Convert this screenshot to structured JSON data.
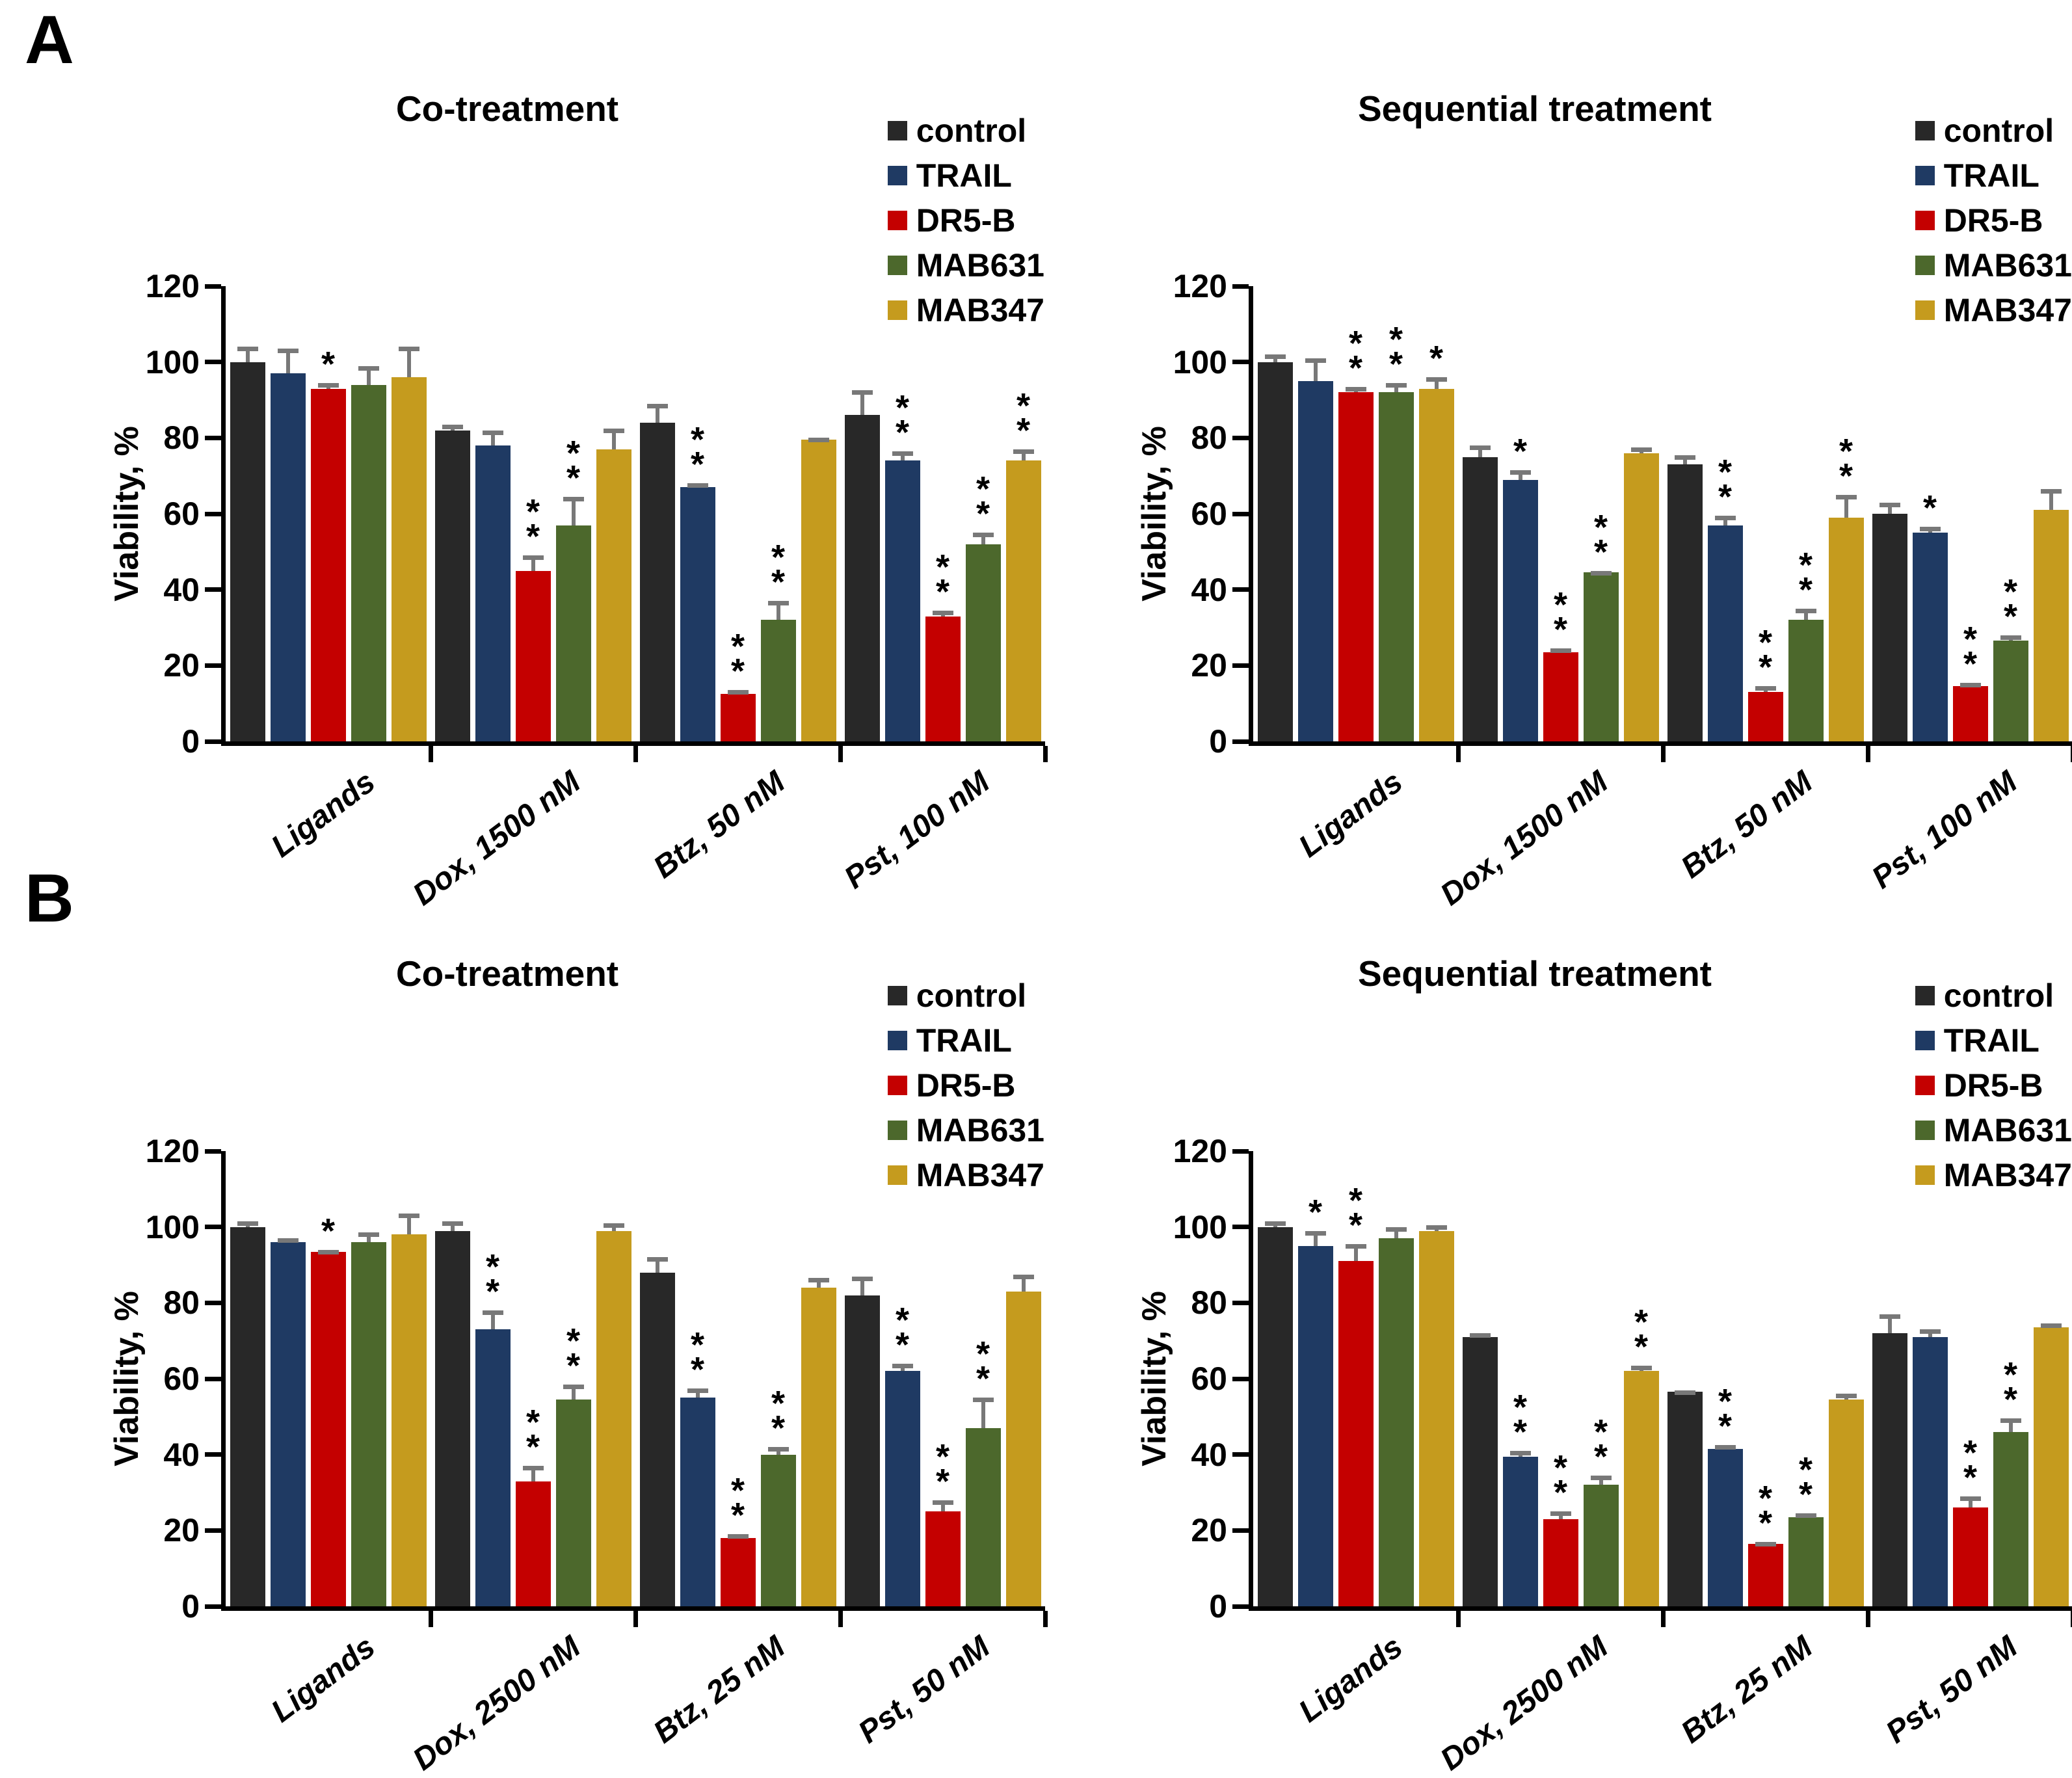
{
  "page": {
    "panel_a_label": "A",
    "panel_b_label": "B"
  },
  "legend": {
    "entries": [
      {
        "label": "control",
        "color": "#282828"
      },
      {
        "label": "TRAIL",
        "color": "#1F3A63"
      },
      {
        "label": "DR5-B",
        "color": "#C40000"
      },
      {
        "label": "MAB631",
        "color": "#4C682C"
      },
      {
        "label": "MAB347",
        "color": "#C59B1E"
      }
    ],
    "position": "top-right"
  },
  "style": {
    "error_bar_color": "#787878",
    "axis_color": "#000000",
    "background": "#ffffff"
  },
  "chart_data": [
    {
      "id": "a_co",
      "panel": "A",
      "type": "bar",
      "title": "Co-treatment",
      "ylabel": "Viability, %",
      "ylim": [
        0,
        120
      ],
      "yticks": [
        0,
        20,
        40,
        60,
        80,
        100,
        120
      ],
      "grid": false,
      "categories": [
        "Ligands",
        "Dox, 1500 nM",
        "Btz, 50 nM",
        "Pst, 100 nM"
      ],
      "series": [
        {
          "name": "control",
          "values": [
            100,
            82,
            84,
            86
          ],
          "errors": [
            4,
            1.5,
            5,
            6.5
          ],
          "sig": [
            "",
            "",
            "",
            ""
          ]
        },
        {
          "name": "TRAIL",
          "values": [
            97,
            78,
            67,
            74
          ],
          "errors": [
            6.5,
            4,
            1,
            2.5
          ],
          "sig": [
            "",
            "",
            "**",
            "**"
          ]
        },
        {
          "name": "DR5-B",
          "values": [
            93,
            45,
            12.5,
            33
          ],
          "errors": [
            1.5,
            4,
            1,
            1.5
          ],
          "sig": [
            "*",
            "**",
            "**",
            "**"
          ]
        },
        {
          "name": "MAB631",
          "values": [
            94,
            57,
            32,
            52
          ],
          "errors": [
            5,
            7.5,
            5,
            3
          ],
          "sig": [
            "",
            "**",
            "**",
            "**"
          ]
        },
        {
          "name": "MAB347",
          "values": [
            96,
            77,
            79.5,
            74
          ],
          "errors": [
            8,
            5.5,
            0.5,
            3
          ],
          "sig": [
            "",
            "",
            "",
            "**"
          ]
        }
      ]
    },
    {
      "id": "a_seq",
      "panel": "A",
      "type": "bar",
      "title": "Sequential treatment",
      "ylabel": "Viability, %",
      "ylim": [
        0,
        120
      ],
      "yticks": [
        0,
        20,
        40,
        60,
        80,
        100,
        120
      ],
      "grid": false,
      "categories": [
        "Ligands",
        "Dox, 1500 nM",
        "Btz, 50 nM",
        "Pst, 100 nM"
      ],
      "series": [
        {
          "name": "control",
          "values": [
            100,
            75,
            73,
            60
          ],
          "errors": [
            2,
            3,
            2.5,
            3
          ],
          "sig": [
            "",
            "",
            "",
            ""
          ]
        },
        {
          "name": "TRAIL",
          "values": [
            95,
            69,
            57,
            55
          ],
          "errors": [
            6,
            2.5,
            2.5,
            1.5
          ],
          "sig": [
            "",
            "*",
            "**",
            "*"
          ]
        },
        {
          "name": "DR5-B",
          "values": [
            92,
            23.5,
            13,
            14.5
          ],
          "errors": [
            1.5,
            1,
            1.5,
            1
          ],
          "sig": [
            "**",
            "**",
            "**",
            "**"
          ]
        },
        {
          "name": "MAB631",
          "values": [
            92,
            44.5,
            32,
            26.5
          ],
          "errors": [
            2.5,
            0.5,
            3,
            1.5
          ],
          "sig": [
            "**",
            "**",
            "**",
            "**"
          ]
        },
        {
          "name": "MAB347",
          "values": [
            93,
            76,
            59,
            61
          ],
          "errors": [
            3,
            1.5,
            6,
            5.5
          ],
          "sig": [
            "*",
            "",
            "**",
            ""
          ]
        }
      ]
    },
    {
      "id": "b_co",
      "panel": "B",
      "type": "bar",
      "title": "Co-treatment",
      "ylabel": "Viability, %",
      "ylim": [
        0,
        120
      ],
      "yticks": [
        0,
        20,
        40,
        60,
        80,
        100,
        120
      ],
      "grid": false,
      "categories": [
        "Ligands",
        "Dox, 2500 nM",
        "Btz, 25 nM",
        "Pst, 50 nM"
      ],
      "series": [
        {
          "name": "control",
          "values": [
            100,
            99,
            88,
            82
          ],
          "errors": [
            1.5,
            2.5,
            4,
            5
          ],
          "sig": [
            "",
            "",
            "",
            ""
          ]
        },
        {
          "name": "TRAIL",
          "values": [
            96,
            73,
            55,
            62
          ],
          "errors": [
            1,
            5,
            2.5,
            2
          ],
          "sig": [
            "",
            "**",
            "**",
            "**"
          ]
        },
        {
          "name": "DR5-B",
          "values": [
            93.5,
            33,
            18,
            25
          ],
          "errors": [
            0.5,
            4,
            1,
            3
          ],
          "sig": [
            "*",
            "**",
            "**",
            "**"
          ]
        },
        {
          "name": "MAB631",
          "values": [
            96,
            54.5,
            40,
            47
          ],
          "errors": [
            2.5,
            4,
            2,
            8
          ],
          "sig": [
            "",
            "**",
            "**",
            "**"
          ]
        },
        {
          "name": "MAB347",
          "values": [
            98,
            99,
            84,
            83
          ],
          "errors": [
            5.5,
            2,
            2.5,
            4.5
          ],
          "sig": [
            "",
            "",
            "",
            ""
          ]
        }
      ]
    },
    {
      "id": "b_seq",
      "panel": "B",
      "type": "bar",
      "title": "Sequential treatment",
      "ylabel": "Viability, %",
      "ylim": [
        0,
        120
      ],
      "yticks": [
        0,
        20,
        40,
        60,
        80,
        100,
        120
      ],
      "grid": false,
      "categories": [
        "Ligands",
        "Dox, 2500 nM",
        "Btz, 25 nM",
        "Pst, 50 nM"
      ],
      "series": [
        {
          "name": "control",
          "values": [
            100,
            71,
            56.5,
            72
          ],
          "errors": [
            1.5,
            1,
            0.5,
            5
          ],
          "sig": [
            "",
            "",
            "",
            ""
          ]
        },
        {
          "name": "TRAIL",
          "values": [
            95,
            39.5,
            41.5,
            71
          ],
          "errors": [
            4,
            1.5,
            1,
            2
          ],
          "sig": [
            "*",
            "**",
            "**",
            ""
          ]
        },
        {
          "name": "DR5-B",
          "values": [
            91,
            23,
            16.5,
            26
          ],
          "errors": [
            4.5,
            2,
            0.5,
            3
          ],
          "sig": [
            "**",
            "**",
            "**",
            "**"
          ]
        },
        {
          "name": "MAB631",
          "values": [
            97,
            32,
            23.5,
            46
          ],
          "errors": [
            3,
            2.5,
            1,
            3.5
          ],
          "sig": [
            "",
            "**",
            "**",
            "**"
          ]
        },
        {
          "name": "MAB347",
          "values": [
            99,
            62,
            54.5,
            73.5
          ],
          "errors": [
            1.5,
            1.5,
            1.5,
            1
          ],
          "sig": [
            "",
            "**",
            "",
            ""
          ]
        }
      ]
    }
  ]
}
